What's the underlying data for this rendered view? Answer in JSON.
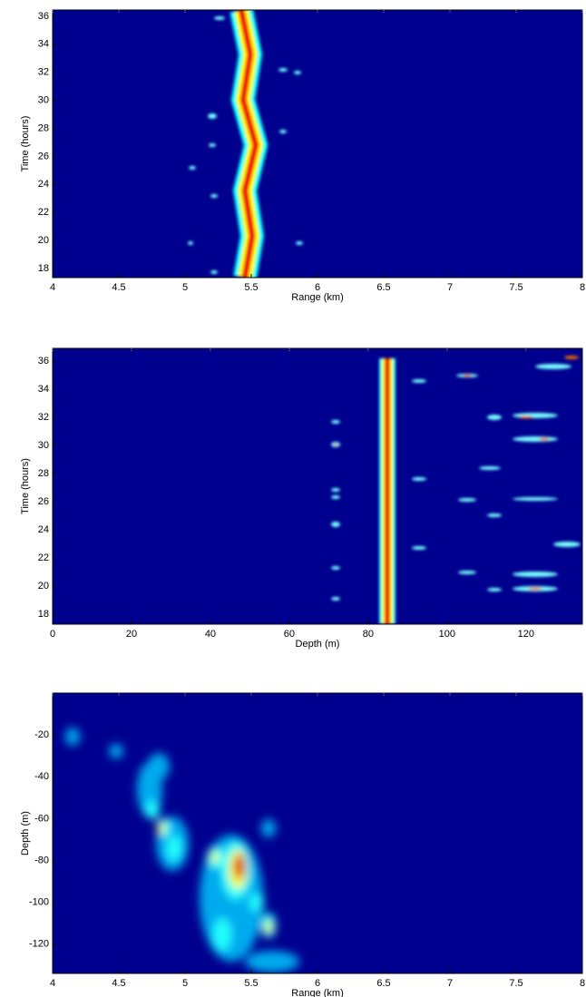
{
  "chart_data": [
    {
      "type": "heatmap",
      "xlabel": "Range (km)",
      "ylabel": "Time (hours)",
      "xlim": [
        4,
        8
      ],
      "xticks": [
        4,
        4.5,
        5,
        5.5,
        6,
        6.5,
        7,
        7.5,
        8
      ],
      "ylim": [
        17.35,
        36.45
      ],
      "yticks": [
        18,
        20,
        22,
        24,
        26,
        28,
        30,
        32,
        34,
        36
      ]
    },
    {
      "type": "heatmap",
      "xlabel": "Depth (m)",
      "ylabel": "Time (hours)",
      "xlim": [
        0,
        134.3
      ],
      "xticks": [
        0,
        20,
        40,
        60,
        80,
        100,
        120
      ],
      "ylim": [
        17.3,
        36.9
      ],
      "yticks": [
        18,
        20,
        22,
        24,
        26,
        28,
        30,
        32,
        34,
        36
      ]
    },
    {
      "type": "heatmap",
      "xlabel": "Range (km)",
      "ylabel": "Depth (m)",
      "xlim": [
        4,
        8
      ],
      "xticks": [
        4,
        4.5,
        5,
        5.5,
        6,
        6.5,
        7,
        7.5,
        8
      ],
      "ylim": [
        -134,
        0
      ],
      "yticks": [
        -120,
        -100,
        -80,
        -60,
        -40,
        -20
      ]
    }
  ]
}
